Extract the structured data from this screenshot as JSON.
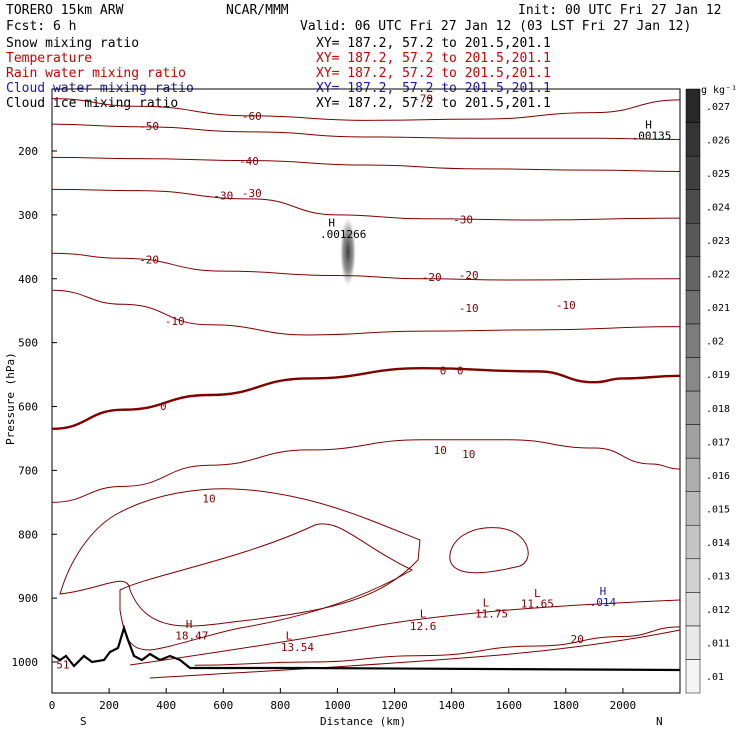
{
  "header": {
    "model": "TORERO  15km ARW",
    "center": "NCAR/MMM",
    "init": "Init: 00 UTC Fri 27 Jan 12",
    "fcst": "Fcst:    6 h",
    "valid": "Valid: 06 UTC Fri 27 Jan 12 (03 LST Fri 27 Jan 12)"
  },
  "fields": [
    {
      "name": "Snow mixing ratio",
      "xy": "XY= 187.2, 57.2 to 201.5,201.1",
      "color": "#000000"
    },
    {
      "name": "Temperature",
      "xy": "XY= 187.2, 57.2 to 201.5,201.1",
      "color": "#cc0000"
    },
    {
      "name": "Rain water mixing ratio",
      "xy": "XY= 187.2, 57.2 to 201.5,201.1",
      "color": "#cc0000"
    },
    {
      "name": "Cloud water mixing ratio",
      "xy": "XY= 187.2, 57.2 to 201.5,201.1",
      "color": "#1a1aaa"
    },
    {
      "name": "Cloud ice mixing ratio",
      "xy": "XY= 187.2, 57.2 to 201.5,201.1",
      "color": "#000000"
    }
  ],
  "chart_data": {
    "type": "contour",
    "xlabel": "Distance (km)",
    "ylabel": "Pressure (hPa)",
    "xlim": [
      0,
      2200
    ],
    "ylim": [
      100,
      1050
    ],
    "x_ticks": [
      0,
      200,
      400,
      600,
      800,
      1000,
      1200,
      1400,
      1600,
      1800,
      2000
    ],
    "y_ticks": [
      200,
      300,
      400,
      500,
      600,
      700,
      800,
      900,
      1000
    ],
    "x_end_labels": {
      "left": "S",
      "right": "N"
    },
    "colorbar": {
      "unit": "g kg⁻¹",
      "labels": [
        ".01",
        ".011",
        ".012",
        ".013",
        ".014",
        ".015",
        ".016",
        ".017",
        ".018",
        ".019",
        ".02",
        ".021",
        ".022",
        ".023",
        ".024",
        ".025",
        ".026",
        ".027"
      ]
    },
    "temperature_contours": [
      {
        "label": "-60",
        "points": [
          [
            0,
            118
          ],
          [
            300,
            130
          ],
          [
            700,
            145
          ],
          [
            1100,
            152
          ],
          [
            1500,
            150
          ],
          [
            1900,
            140
          ],
          [
            2200,
            120
          ]
        ]
      },
      {
        "label": "-50",
        "points": [
          [
            0,
            158
          ],
          [
            300,
            162
          ],
          [
            700,
            170
          ],
          [
            1100,
            178
          ],
          [
            1500,
            180
          ],
          [
            1900,
            180
          ],
          [
            2200,
            182
          ]
        ]
      },
      {
        "label": "-40",
        "points": [
          [
            0,
            210
          ],
          [
            300,
            212
          ],
          [
            700,
            215
          ],
          [
            1100,
            222
          ],
          [
            1500,
            228
          ],
          [
            1900,
            230
          ],
          [
            2200,
            232
          ]
        ]
      },
      {
        "label": "-30",
        "points": [
          [
            0,
            260
          ],
          [
            300,
            262
          ],
          [
            700,
            275
          ],
          [
            1000,
            300
          ],
          [
            1300,
            306
          ],
          [
            1700,
            308
          ],
          [
            2200,
            305
          ]
        ]
      },
      {
        "label": "-20",
        "points": [
          [
            0,
            360
          ],
          [
            250,
            368
          ],
          [
            600,
            388
          ],
          [
            1000,
            395
          ],
          [
            1300,
            400
          ],
          [
            1600,
            402
          ],
          [
            2200,
            400
          ]
        ]
      },
      {
        "label": "-10",
        "points": [
          [
            0,
            418
          ],
          [
            250,
            440
          ],
          [
            550,
            472
          ],
          [
            900,
            488
          ],
          [
            1300,
            482
          ],
          [
            1700,
            480
          ],
          [
            2200,
            475
          ]
        ]
      },
      {
        "label": "0",
        "points": [
          [
            0,
            635
          ],
          [
            250,
            605
          ],
          [
            550,
            582
          ],
          [
            900,
            556
          ],
          [
            1300,
            540
          ],
          [
            1700,
            545
          ],
          [
            1900,
            562
          ],
          [
            2000,
            556
          ],
          [
            2200,
            552
          ]
        ]
      },
      {
        "label": "10",
        "points": [
          [
            0,
            750
          ],
          [
            250,
            725
          ],
          [
            550,
            692
          ],
          [
            900,
            668
          ],
          [
            1300,
            652
          ],
          [
            1600,
            652
          ],
          [
            1900,
            665
          ],
          [
            2100,
            690
          ],
          [
            2200,
            698
          ]
        ]
      },
      {
        "label": "20",
        "points": [
          [
            500,
            1005
          ],
          [
            900,
            1000
          ],
          [
            1300,
            990
          ],
          [
            1700,
            975
          ],
          [
            2000,
            960
          ],
          [
            2200,
            945
          ]
        ]
      }
    ],
    "temperature_labels": [
      {
        "text": "-60",
        "x": 700,
        "p": 145
      },
      {
        "text": "-70",
        "x": 1300,
        "p": 118
      },
      {
        "text": "-50",
        "x": 340,
        "p": 161
      },
      {
        "text": "-40",
        "x": 690,
        "p": 216
      },
      {
        "text": "-30",
        "x": 600,
        "p": 270
      },
      {
        "text": "-30",
        "x": 700,
        "p": 266
      },
      {
        "text": "-30",
        "x": 1440,
        "p": 307
      },
      {
        "text": "-20",
        "x": 340,
        "p": 370
      },
      {
        "text": "-20",
        "x": 1330,
        "p": 397
      },
      {
        "text": "-20",
        "x": 1460,
        "p": 394
      },
      {
        "text": "-10",
        "x": 430,
        "p": 466
      },
      {
        "text": "-10",
        "x": 1460,
        "p": 446
      },
      {
        "text": "-10",
        "x": 1800,
        "p": 441
      },
      {
        "text": "0",
        "x": 390,
        "p": 599
      },
      {
        "text": "0",
        "x": 1370,
        "p": 544
      },
      {
        "text": "0",
        "x": 1430,
        "p": 544
      },
      {
        "text": "10",
        "x": 550,
        "p": 744
      },
      {
        "text": "10",
        "x": 1360,
        "p": 668
      },
      {
        "text": "10",
        "x": 1460,
        "p": 674
      },
      {
        "text": "20",
        "x": 1840,
        "p": 964
      }
    ],
    "point_labels": [
      {
        "text": "H",
        "x": 480,
        "p": 947,
        "color": "#800000"
      },
      {
        "text": "18.47",
        "x": 490,
        "p": 965,
        "color": "#800000"
      },
      {
        "text": "L",
        "x": 830,
        "p": 965,
        "color": "#800000"
      },
      {
        "text": "13.54",
        "x": 860,
        "p": 983,
        "color": "#800000"
      },
      {
        "text": "L",
        "x": 1300,
        "p": 930,
        "color": "#800000"
      },
      {
        "text": "12.6",
        "x": 1300,
        "p": 950,
        "color": "#800000"
      },
      {
        "text": "L",
        "x": 1520,
        "p": 913,
        "color": "#800000"
      },
      {
        "text": "11.75",
        "x": 1540,
        "p": 930,
        "color": "#800000"
      },
      {
        "text": "L",
        "x": 1700,
        "p": 898,
        "color": "#800000"
      },
      {
        "text": "11.65",
        "x": 1700,
        "p": 915,
        "color": "#800000"
      },
      {
        "text": "H",
        "x": 1930,
        "p": 895,
        "color": "#1a1aaa"
      },
      {
        "text": ".014",
        "x": 1930,
        "p": 912,
        "color": "#1a1aaa"
      },
      {
        "text": "H",
        "x": 980,
        "p": 318,
        "color": "#000000"
      },
      {
        "text": ".001266",
        "x": 1020,
        "p": 336,
        "color": "#000000"
      },
      {
        "text": "H",
        "x": 2090,
        "p": 165,
        "color": "#000000"
      },
      {
        "text": ".00135",
        "x": 2100,
        "p": 182,
        "color": "#000000"
      },
      {
        "text": "51",
        "x": 38,
        "p": 1010,
        "color": "#800000"
      }
    ],
    "terrain_label": "Terrain"
  }
}
